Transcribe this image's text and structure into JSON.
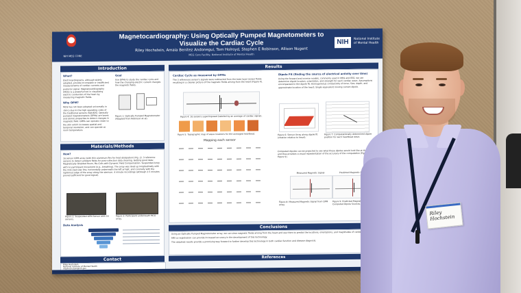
{
  "poster": {
    "logo_caption": "NIH MEG CORE",
    "title_line1": "Magnetocardiography: Using Optically Pumped Magnetometers to",
    "title_line2": "Visualize the Cardiac Cycle",
    "authors": "Riley Hochstein, Amaia Benitez Andonegui, Tom Holroyd, Stephen E Robinson, Allison Nugent",
    "affiliation": "MEG Core Facility, National Institute of Mental Health",
    "nih_badge": "NIH",
    "nih_name": "National Institute of Mental Health",
    "sections": {
      "introduction": "Introduction",
      "materials_methods": "Materials/Methods",
      "results": "Results",
      "conclusions": "Conclusions",
      "contact": "Contact",
      "references": "References"
    },
    "intro": {
      "what_heading": "What?",
      "what_text": "Electrocardiograms, although widely adopted, provide incomplete or insufficient measurements of cardiac currents and posterior signal. Magnetocardiography (MCG) is a powerful tool in visualizing electric conduction of the heart by measuring magnetic fields.",
      "why_heading": "Why OPM?",
      "why_text": "MCG has not been adopted universally in clinics due to the high operating costs of the traditional sensors (SQUIDS). Optically pumped magnetometers (OPMs) are lasers and atomic properties to detect changes in magnetic field. OPMs can operate closer to the skin which increases spatial and temporal resolution, and can operate at room temperature.",
      "goal_heading": "Goal",
      "goal_text": "Use OPMs to study the cardiac cycle and how the changing electric current changes the magnetic fields.",
      "figure1_caption": "Figure 1: Optically Pumped Magnetometer (Adapted from Robinson et al)."
    },
    "methods": {
      "how_heading": "How?",
      "how_text": "16 sensor OPM array (with thin aluminum fins for heat dissipation) (Fig. 2). 3 reference sensors to detect ambient fields for post-collection data cleaning. Getting good data: Magnetically Shielded Room, Mu-Coils with Dynamic Field Compensation. Suspended Array with no participant movement (e.g., breathing). The array was lined up longitudinally with the mid-clavicular line, horizontally underneath the left armpit, and coronally with the rightmost edge of the array along the sternum. 4 minute recordings (although 2.5 minutes proved sufficient for good signal).",
      "figure2_caption": "Figure 2: Suspended OPM Sensor with 16 sensors.",
      "figure3_caption": "Figure 3: Participant underneath MCG array.",
      "data_analysis_heading": "Data Analysis"
    },
    "results": {
      "cardiac_heading": "Cardiac Cycle as measured by OPMs",
      "cardiac_text": "The 3 references sensor's signals were subtracted from the base layer sensor fields resulting in a cleaner picture of the magnetic fields arising from the heart (Figure 4).",
      "figure4_caption": "Figure 4: 16 sensors superimposed (labeled by an average of cardiac signal).",
      "dipole_heading": "Dipole Fit (finding the source of electrical activity over time)",
      "dipole_text": "Using the forward and inverse models, commonly used in MEG and EEG, we can determine dipole location, orientation, and strength for each cardiac wave. Assumptions encompassed in the dipole fit: Homogeneous conductivity of torso; Size, depth, and approximate location of the heart; Single equivalent moving current dipole.",
      "figure5_caption": "Figure 5: Topographic map of wave locations for the averaged heartbeat.",
      "figure6_caption": "Figure 6: Sensor Array along dipole fit (rotation relative to heart).",
      "figure7_caption": "Figure 7: Computationally determined dipole position for each heartbeat wave.",
      "mapping_label": "Mapping each sensor",
      "computed_text": "Computed dipoles can be projected to see what these dipoles would look like at the sensors and thus provides a visual representation of the accuracy of the computation (Figures 8 and Figure 9).",
      "figure8_title": "Measured Magnetic Signal",
      "figure9_title": "Predicted Magnetic Signal",
      "figure8_caption": "Figure 8: Measured Magnetic Signal from OPM array.",
      "figure9_caption": "Figure 9: Predicted Magnetic Signal from Computed Dipole Sources."
    },
    "conclusions": {
      "items": [
        "Using an Optically Pumped Magnetometer array, we can view magnetic fields arising from the heart and use them to predict the locations, orientations, and magnitudes of cardiac sources.",
        "MRI co-registration can provide increased accuracy in the development of this technology.",
        "The obtained results provide a promising way forward to further develop this technology in both cardiac function and disease diagnosis."
      ]
    },
    "contact": {
      "name": "Riley Hochstein",
      "org": "National Institute of Mental Health",
      "email": "rileyhochstein@nih.gov"
    }
  },
  "name_tag": {
    "name": "Riley Hochstein"
  },
  "colors": {
    "poster_navy": "#203a6e",
    "shirt_lavender": "#c2bee6",
    "heatmap_red": "#d8412c",
    "heatmap_orange": "#f09a4c"
  }
}
